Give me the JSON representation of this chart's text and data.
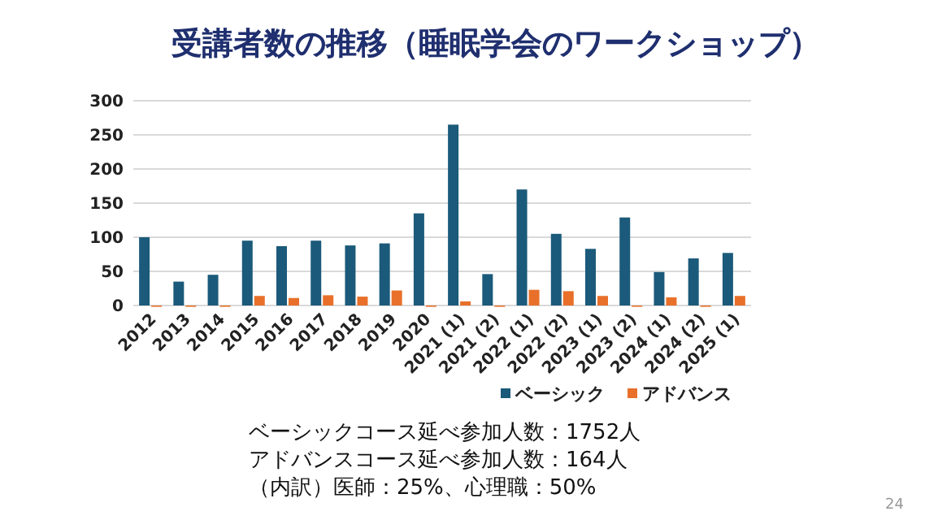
{
  "chart_data": {
    "type": "bar",
    "title": "受講者数の推移（睡眠学会のワークショップ）",
    "categories": [
      "2012",
      "2013",
      "2014",
      "2015",
      "2016",
      "2017",
      "2018",
      "2019",
      "2020",
      "2021 (1)",
      "2021 (2)",
      "2022 (1)",
      "2022 (2)",
      "2023 (1)",
      "2023 (2)",
      "2024 (1)",
      "2024 (2)",
      "2025 (1)"
    ],
    "series": [
      {
        "name": "ベーシック",
        "color": "#1b5a7a",
        "values": [
          100,
          35,
          45,
          95,
          87,
          95,
          88,
          91,
          135,
          265,
          46,
          170,
          105,
          83,
          129,
          49,
          69,
          77
        ]
      },
      {
        "name": "アドバンス",
        "color": "#e8702a",
        "values": [
          0,
          0,
          0,
          14,
          11,
          15,
          13,
          22,
          0,
          6,
          0,
          23,
          21,
          14,
          0,
          12,
          0,
          14
        ]
      }
    ],
    "ylim": [
      0,
      300
    ],
    "yticks": [
      0,
      50,
      100,
      150,
      200,
      250,
      300
    ],
    "grid": "y",
    "legend": "bottom",
    "annotations": [
      "ベーシックコース延べ参加人数：1752人",
      "アドバンスコース延べ参加人数：164人",
      "（内訳）医師：25%、心理職：50%",
      "24"
    ]
  }
}
